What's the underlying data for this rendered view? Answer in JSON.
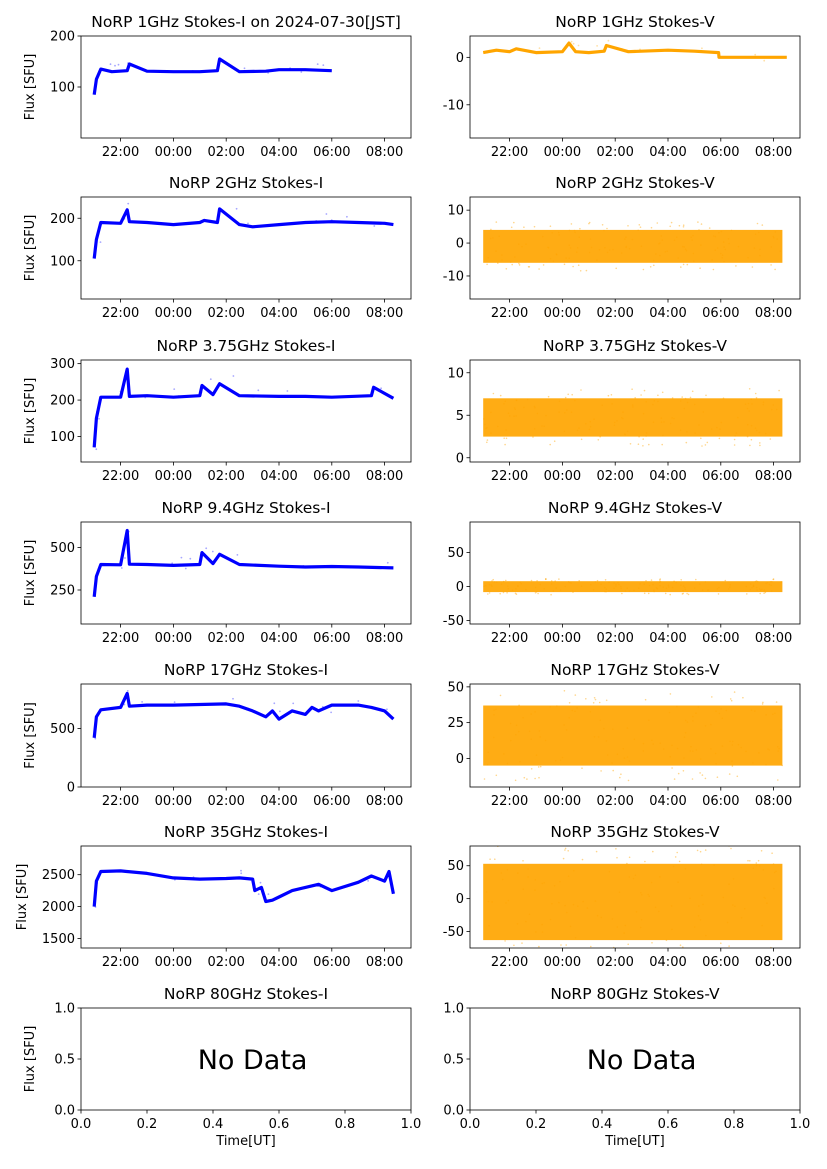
{
  "figure": {
    "ylabel_common": "Flux [SFU]",
    "xlabel_common": "Time[UT]",
    "colors": {
      "stokes_i": "#0000ff",
      "stokes_v": "#ffa500"
    }
  },
  "chart_data": [
    {
      "type": "line",
      "title": "NoRP 1GHz Stokes-I on 2024-07-30[JST]",
      "ylabel": "Flux [SFU]",
      "xlabel": "",
      "ylim": [
        0,
        200
      ],
      "yticks": [
        100,
        200
      ],
      "xlim": [
        "20:30",
        "09:00"
      ],
      "xticks": [
        "22:00",
        "00:00",
        "02:00",
        "04:00",
        "06:00",
        "08:00"
      ],
      "color": "#0000ff",
      "series": [
        {
          "x": [
            "21:00",
            "21:05",
            "21:15",
            "21:40",
            "22:15",
            "22:20",
            "23:00",
            "00:00",
            "01:00",
            "01:40",
            "01:45",
            "02:30",
            "03:30",
            "04:00",
            "05:00",
            "06:00"
          ],
          "y": [
            85,
            115,
            135,
            130,
            132,
            145,
            131,
            130,
            130,
            132,
            155,
            130,
            131,
            134,
            134,
            132
          ]
        }
      ],
      "no_data": false,
      "no_data_text": ""
    },
    {
      "type": "line",
      "title": "NoRP 1GHz Stokes-V",
      "ylabel": "",
      "xlabel": "",
      "ylim": [
        -17,
        4.5
      ],
      "yticks": [
        -10,
        0
      ],
      "xlim": [
        "20:30",
        "09:00"
      ],
      "xticks": [
        "22:00",
        "00:00",
        "02:00",
        "04:00",
        "06:00",
        "08:00"
      ],
      "color": "#ffa500",
      "series": [
        {
          "x": [
            "21:00",
            "21:30",
            "22:00",
            "22:15",
            "23:00",
            "00:00",
            "00:15",
            "00:30",
            "01:00",
            "01:35",
            "01:40",
            "02:30",
            "04:00",
            "05:00",
            "05:55",
            "05:56",
            "07:00",
            "08:30"
          ],
          "y": [
            1.0,
            1.5,
            1.2,
            1.8,
            1.0,
            1.2,
            3.0,
            1.2,
            1.0,
            1.3,
            2.5,
            1.2,
            1.5,
            1.3,
            1.0,
            0,
            0,
            0
          ]
        }
      ],
      "no_data": false,
      "no_data_text": ""
    },
    {
      "type": "line",
      "title": "NoRP 2GHz Stokes-I",
      "ylabel": "Flux [SFU]",
      "xlabel": "",
      "ylim": [
        10,
        250
      ],
      "yticks": [
        100,
        200
      ],
      "xlim": [
        "20:30",
        "09:00"
      ],
      "xticks": [
        "22:00",
        "00:00",
        "02:00",
        "04:00",
        "06:00",
        "08:00"
      ],
      "color": "#0000ff",
      "series": [
        {
          "x": [
            "21:00",
            "21:05",
            "21:15",
            "22:00",
            "22:15",
            "22:20",
            "23:00",
            "00:00",
            "01:00",
            "01:10",
            "01:40",
            "01:45",
            "02:30",
            "03:00",
            "04:00",
            "05:00",
            "06:00",
            "07:00",
            "08:00",
            "08:20"
          ],
          "y": [
            105,
            150,
            190,
            188,
            220,
            192,
            190,
            185,
            190,
            195,
            190,
            222,
            185,
            180,
            185,
            190,
            192,
            190,
            188,
            185
          ]
        }
      ],
      "no_data": false,
      "no_data_text": ""
    },
    {
      "type": "scatter",
      "title": "NoRP 2GHz Stokes-V",
      "ylabel": "",
      "xlabel": "",
      "ylim": [
        -17,
        14
      ],
      "yticks": [
        -10,
        0,
        10
      ],
      "xlim": [
        "20:30",
        "09:00"
      ],
      "xticks": [
        "22:00",
        "00:00",
        "02:00",
        "04:00",
        "06:00",
        "08:00"
      ],
      "color": "#ffa500",
      "series": [
        {
          "x": [
            "21:00",
            "08:20"
          ],
          "y": [
            -6,
            4
          ]
        }
      ],
      "no_data": false,
      "no_data_text": ""
    },
    {
      "type": "line",
      "title": "NoRP 3.75GHz Stokes-I",
      "ylabel": "Flux [SFU]",
      "xlabel": "",
      "ylim": [
        30,
        310
      ],
      "yticks": [
        100,
        200,
        300
      ],
      "xlim": [
        "20:30",
        "09:00"
      ],
      "xticks": [
        "22:00",
        "00:00",
        "02:00",
        "04:00",
        "06:00",
        "08:00"
      ],
      "color": "#0000ff",
      "series": [
        {
          "x": [
            "21:00",
            "21:05",
            "21:15",
            "22:00",
            "22:15",
            "22:20",
            "23:00",
            "00:00",
            "01:00",
            "01:05",
            "01:30",
            "01:45",
            "02:30",
            "04:00",
            "05:00",
            "06:00",
            "07:30",
            "07:35",
            "08:20"
          ],
          "y": [
            70,
            150,
            208,
            208,
            285,
            210,
            212,
            208,
            212,
            240,
            215,
            245,
            212,
            210,
            210,
            208,
            212,
            235,
            205
          ]
        }
      ],
      "no_data": false,
      "no_data_text": ""
    },
    {
      "type": "scatter",
      "title": "NoRP 3.75GHz Stokes-V",
      "ylabel": "",
      "xlabel": "",
      "ylim": [
        -0.5,
        11.5
      ],
      "yticks": [
        0,
        5,
        10
      ],
      "xlim": [
        "20:30",
        "09:00"
      ],
      "xticks": [
        "22:00",
        "00:00",
        "02:00",
        "04:00",
        "06:00",
        "08:00"
      ],
      "color": "#ffa500",
      "series": [
        {
          "x": [
            "21:00",
            "08:20"
          ],
          "y": [
            2.5,
            7
          ]
        }
      ],
      "no_data": false,
      "no_data_text": ""
    },
    {
      "type": "line",
      "title": "NoRP 9.4GHz Stokes-I",
      "ylabel": "Flux [SFU]",
      "xlabel": "",
      "ylim": [
        50,
        650
      ],
      "yticks": [
        250,
        500
      ],
      "xlim": [
        "20:30",
        "09:00"
      ],
      "xticks": [
        "22:00",
        "00:00",
        "02:00",
        "04:00",
        "06:00",
        "08:00"
      ],
      "color": "#0000ff",
      "series": [
        {
          "x": [
            "21:00",
            "21:05",
            "21:15",
            "22:00",
            "22:15",
            "22:20",
            "23:00",
            "00:00",
            "01:00",
            "01:05",
            "01:30",
            "01:45",
            "02:30",
            "04:00",
            "05:00",
            "06:00",
            "07:00",
            "08:20"
          ],
          "y": [
            210,
            330,
            400,
            398,
            600,
            402,
            400,
            395,
            400,
            470,
            405,
            460,
            400,
            390,
            385,
            388,
            385,
            380
          ]
        }
      ],
      "no_data": false,
      "no_data_text": ""
    },
    {
      "type": "scatter",
      "title": "NoRP 9.4GHz Stokes-V",
      "ylabel": "",
      "xlabel": "",
      "ylim": [
        -55,
        95
      ],
      "yticks": [
        -50,
        0,
        50
      ],
      "xlim": [
        "20:30",
        "09:00"
      ],
      "xticks": [
        "22:00",
        "00:00",
        "02:00",
        "04:00",
        "06:00",
        "08:00"
      ],
      "color": "#ffa500",
      "series": [
        {
          "x": [
            "21:00",
            "08:20"
          ],
          "y": [
            -8,
            8
          ]
        }
      ],
      "no_data": false,
      "no_data_text": ""
    },
    {
      "type": "line",
      "title": "NoRP 17GHz Stokes-I",
      "ylabel": "Flux [SFU]",
      "xlabel": "",
      "ylim": [
        0,
        880
      ],
      "yticks": [
        0,
        500
      ],
      "xlim": [
        "20:30",
        "09:00"
      ],
      "xticks": [
        "22:00",
        "00:00",
        "02:00",
        "04:00",
        "06:00",
        "08:00"
      ],
      "color": "#0000ff",
      "series": [
        {
          "x": [
            "21:00",
            "21:05",
            "21:15",
            "22:00",
            "22:15",
            "22:20",
            "23:00",
            "00:00",
            "01:00",
            "02:00",
            "02:30",
            "03:00",
            "03:30",
            "03:45",
            "04:00",
            "04:30",
            "05:00",
            "05:15",
            "05:30",
            "06:00",
            "07:00",
            "07:30",
            "08:00",
            "08:20"
          ],
          "y": [
            420,
            600,
            660,
            680,
            800,
            690,
            700,
            700,
            705,
            710,
            690,
            650,
            600,
            650,
            580,
            650,
            620,
            680,
            650,
            700,
            700,
            680,
            650,
            580
          ]
        }
      ],
      "no_data": false,
      "no_data_text": ""
    },
    {
      "type": "scatter",
      "title": "NoRP 17GHz Stokes-V",
      "ylabel": "",
      "xlabel": "",
      "ylim": [
        -20,
        52
      ],
      "yticks": [
        0,
        25,
        50
      ],
      "xlim": [
        "20:30",
        "09:00"
      ],
      "xticks": [
        "22:00",
        "00:00",
        "02:00",
        "04:00",
        "06:00",
        "08:00"
      ],
      "color": "#ffa500",
      "series": [
        {
          "x": [
            "21:00",
            "08:20"
          ],
          "y": [
            -5,
            37
          ]
        }
      ],
      "no_data": false,
      "no_data_text": ""
    },
    {
      "type": "line",
      "title": "NoRP 35GHz Stokes-I",
      "ylabel": "Flux [SFU]",
      "xlabel": "",
      "ylim": [
        1350,
        2950
      ],
      "yticks": [
        1500,
        2000,
        2500
      ],
      "xlim": [
        "20:30",
        "09:00"
      ],
      "xticks": [
        "22:00",
        "00:00",
        "02:00",
        "04:00",
        "06:00",
        "08:00"
      ],
      "color": "#0000ff",
      "series": [
        {
          "x": [
            "21:00",
            "21:05",
            "21:15",
            "22:00",
            "23:00",
            "00:00",
            "01:00",
            "02:00",
            "02:30",
            "03:00",
            "03:05",
            "03:20",
            "03:30",
            "03:45",
            "04:00",
            "04:30",
            "05:00",
            "05:30",
            "06:00",
            "07:00",
            "07:30",
            "08:00",
            "08:10",
            "08:20"
          ],
          "y": [
            2000,
            2400,
            2550,
            2560,
            2520,
            2450,
            2430,
            2440,
            2450,
            2430,
            2250,
            2300,
            2080,
            2100,
            2150,
            2250,
            2300,
            2350,
            2250,
            2380,
            2480,
            2400,
            2550,
            2200
          ]
        }
      ],
      "no_data": false,
      "no_data_text": ""
    },
    {
      "type": "scatter",
      "title": "NoRP 35GHz Stokes-V",
      "ylabel": "",
      "xlabel": "",
      "ylim": [
        -75,
        80
      ],
      "yticks": [
        -50,
        0,
        50
      ],
      "xlim": [
        "20:30",
        "09:00"
      ],
      "xticks": [
        "22:00",
        "00:00",
        "02:00",
        "04:00",
        "06:00",
        "08:00"
      ],
      "color": "#ffa500",
      "series": [
        {
          "x": [
            "21:00",
            "08:20"
          ],
          "y": [
            -63,
            53
          ]
        }
      ],
      "no_data": false,
      "no_data_text": ""
    },
    {
      "type": "line",
      "title": "NoRP 80GHz Stokes-I",
      "ylabel": "Flux [SFU]",
      "xlabel": "Time[UT]",
      "ylim": [
        0,
        1
      ],
      "yticks": [
        0.0,
        0.5,
        1.0
      ],
      "yticklabels": [
        "0.0",
        "0.5",
        "1.0"
      ],
      "xlim": [
        0,
        1
      ],
      "xticks": [
        "0.0",
        "0.2",
        "0.4",
        "0.6",
        "0.8",
        "1.0"
      ],
      "color": "#0000ff",
      "series": [],
      "no_data": true,
      "no_data_text": "No Data"
    },
    {
      "type": "line",
      "title": "NoRP 80GHz Stokes-V",
      "ylabel": "",
      "xlabel": "Time[UT]",
      "ylim": [
        0,
        1
      ],
      "yticks": [
        0.0,
        0.5,
        1.0
      ],
      "yticklabels": [
        "0.0",
        "0.5",
        "1.0"
      ],
      "xlim": [
        0,
        1
      ],
      "xticks": [
        "0.0",
        "0.2",
        "0.4",
        "0.6",
        "0.8",
        "1.0"
      ],
      "color": "#ffa500",
      "series": [],
      "no_data": true,
      "no_data_text": "No Data"
    }
  ]
}
